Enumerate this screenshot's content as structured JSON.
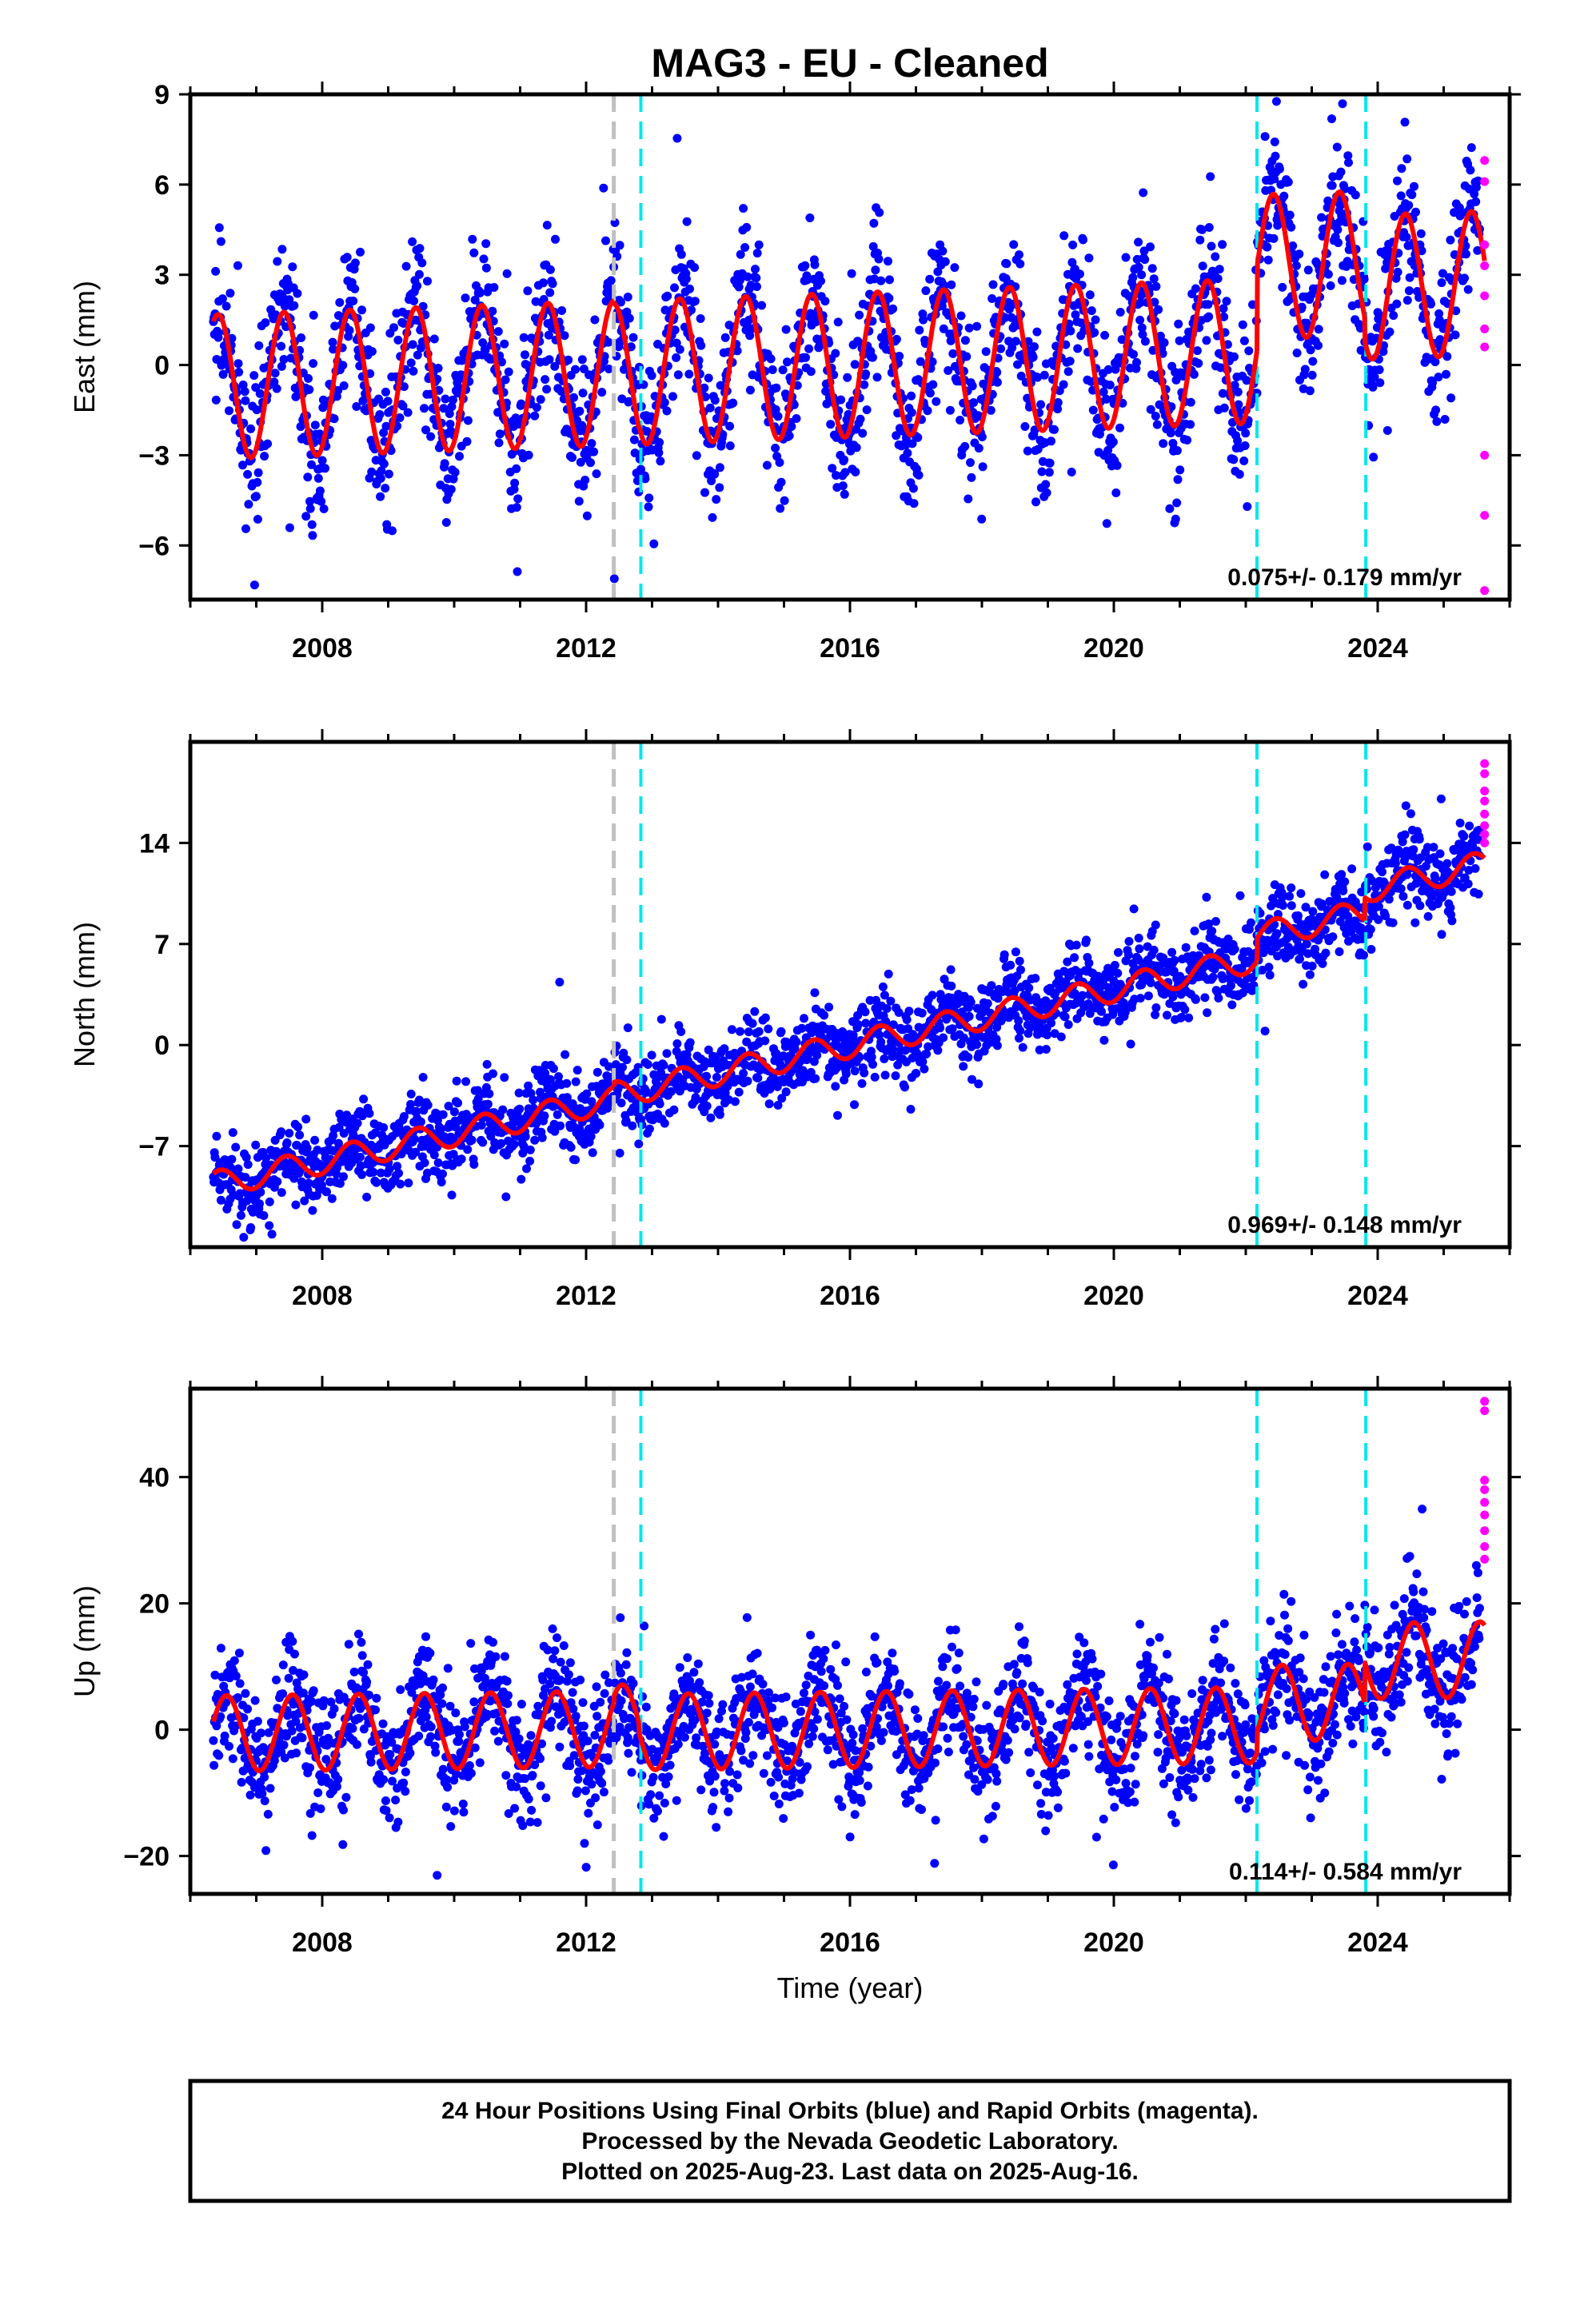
{
  "title": "MAG3  - EU - Cleaned",
  "colors": {
    "final": "#0000ff",
    "rapid": "#ff00ff",
    "model": "#ff0000",
    "equipment_change": "#c0c0c0",
    "event": "#00e5ee"
  },
  "footer": {
    "line1": "24 Hour Positions Using Final Orbits (blue) and Rapid Orbits (magenta).",
    "line2": "Processed by the Nevada Geodetic Laboratory.",
    "line3": "Plotted on 2025-Aug-23. Last data on 2025-Aug-16."
  },
  "chart_data": [
    {
      "type": "scatter",
      "component": "east",
      "ylabel": "East (mm)",
      "xlabel": "",
      "xlim": [
        2006.0,
        2026.0
      ],
      "ylim": [
        -7.8,
        9
      ],
      "yticks": [
        -6,
        -3,
        0,
        3,
        6,
        9
      ],
      "yticks_labels": [
        "−6",
        "−3",
        "0",
        "3",
        "6",
        "9"
      ],
      "xticks": [
        2008,
        2012,
        2016,
        2020,
        2024
      ],
      "xticks_labels": [
        "2008",
        "2012",
        "2016",
        "2020",
        "2024"
      ],
      "rate_label": "0.075+/- 0.179 mm/yr",
      "data_start": 2006.35,
      "data_end": 2025.62,
      "rapid_start": 2025.55,
      "noise_sd": 1.25,
      "seasonal_amplitude": 2.4,
      "seasonal_peak_phase": 0.42,
      "model": {
        "segments": [
          {
            "start": 2006.35,
            "end": 2012.42,
            "offset": 0.0,
            "slope": 0.075
          },
          {
            "start": 2012.42,
            "end": 2012.8,
            "offset": -0.1,
            "slope": 0.075
          },
          {
            "start": 2012.8,
            "end": 2022.17,
            "offset": 0.0,
            "slope": 0.075
          },
          {
            "start": 2022.17,
            "end": 2023.8,
            "offset": 2.8,
            "slope": 0.075
          },
          {
            "start": 2023.8,
            "end": 2025.62,
            "offset": 2.0,
            "slope": 0.075
          }
        ]
      },
      "dashed_lines": [
        {
          "x": 2012.42,
          "kind": "equipment_change"
        },
        {
          "x": 2012.83,
          "kind": "event"
        },
        {
          "x": 2022.17,
          "kind": "event"
        },
        {
          "x": 2023.82,
          "kind": "event"
        }
      ],
      "rapid_points": [
        {
          "x": 2025.62,
          "y": 6.8
        },
        {
          "x": 2025.62,
          "y": 6.1
        },
        {
          "x": 2025.62,
          "y": 4.0
        },
        {
          "x": 2025.62,
          "y": 3.3
        },
        {
          "x": 2025.62,
          "y": 2.3
        },
        {
          "x": 2025.62,
          "y": 1.2
        },
        {
          "x": 2025.62,
          "y": 0.6
        },
        {
          "x": 2025.62,
          "y": -3.0
        },
        {
          "x": 2025.62,
          "y": -5.0
        },
        {
          "x": 2025.62,
          "y": -7.5
        }
      ]
    },
    {
      "type": "scatter",
      "component": "north",
      "ylabel": "North (mm)",
      "xlabel": "",
      "xlim": [
        2006.0,
        2026.0
      ],
      "ylim": [
        -14,
        21
      ],
      "yticks": [
        -7,
        0,
        7,
        14
      ],
      "yticks_labels": [
        "−7",
        "0",
        "7",
        "14"
      ],
      "xticks": [
        2008,
        2012,
        2016,
        2020,
        2024
      ],
      "xticks_labels": [
        "2008",
        "2012",
        "2016",
        "2020",
        "2024"
      ],
      "rate_label": "0.969+/- 0.148 mm/yr",
      "data_start": 2006.35,
      "data_end": 2025.62,
      "rapid_start": 2025.55,
      "noise_sd": 1.4,
      "seasonal_amplitude": 0.9,
      "seasonal_peak_phase": 0.45,
      "model": {
        "segments": [
          {
            "start": 2006.35,
            "end": 2012.42,
            "offset": -0.3,
            "slope": 0.969
          },
          {
            "start": 2012.42,
            "end": 2012.8,
            "offset": 0.0,
            "slope": 0.969
          },
          {
            "start": 2012.8,
            "end": 2022.17,
            "offset": 0.0,
            "slope": 0.969
          },
          {
            "start": 2022.17,
            "end": 2023.8,
            "offset": 1.6,
            "slope": 0.969
          },
          {
            "start": 2023.8,
            "end": 2025.62,
            "offset": 3.2,
            "slope": 0.969
          }
        ]
      },
      "dashed_lines": [
        {
          "x": 2012.42,
          "kind": "equipment_change"
        },
        {
          "x": 2012.83,
          "kind": "event"
        },
        {
          "x": 2022.17,
          "kind": "event"
        },
        {
          "x": 2023.82,
          "kind": "event"
        }
      ],
      "rapid_points": [
        {
          "x": 2025.62,
          "y": 19.5
        },
        {
          "x": 2025.62,
          "y": 18.8
        },
        {
          "x": 2025.62,
          "y": 17.6
        },
        {
          "x": 2025.62,
          "y": 16.9
        },
        {
          "x": 2025.62,
          "y": 16.0
        },
        {
          "x": 2025.62,
          "y": 15.2
        },
        {
          "x": 2025.62,
          "y": 14.6
        },
        {
          "x": 2025.62,
          "y": 14.0
        }
      ]
    },
    {
      "type": "scatter",
      "component": "up",
      "ylabel": "Up (mm)",
      "xlabel": "Time (year)",
      "xlim": [
        2006.0,
        2026.0
      ],
      "ylim": [
        -26,
        54
      ],
      "yticks": [
        -20,
        0,
        20,
        40
      ],
      "yticks_labels": [
        "−20",
        "0",
        "20",
        "40"
      ],
      "xticks": [
        2008,
        2012,
        2016,
        2020,
        2024
      ],
      "xticks_labels": [
        "2008",
        "2012",
        "2016",
        "2020",
        "2024"
      ],
      "rate_label": "0.114+/- 0.584 mm/yr",
      "data_start": 2006.35,
      "data_end": 2025.62,
      "rapid_start": 2025.55,
      "noise_sd": 4.8,
      "seasonal_amplitude": 6.0,
      "seasonal_peak_phase": 0.55,
      "model": {
        "segments": [
          {
            "start": 2006.35,
            "end": 2012.42,
            "offset": 0.5,
            "slope": 0.114
          },
          {
            "start": 2012.42,
            "end": 2012.8,
            "offset": 1.5,
            "slope": 0.114
          },
          {
            "start": 2012.8,
            "end": 2022.17,
            "offset": 0.0,
            "slope": 0.114
          },
          {
            "start": 2022.17,
            "end": 2023.8,
            "offset": 3.5,
            "slope": 0.114
          },
          {
            "start": 2023.8,
            "end": 2025.62,
            "offset": 10.0,
            "slope": 0.114
          }
        ]
      },
      "dashed_lines": [
        {
          "x": 2012.42,
          "kind": "equipment_change"
        },
        {
          "x": 2012.83,
          "kind": "event"
        },
        {
          "x": 2022.17,
          "kind": "event"
        },
        {
          "x": 2023.82,
          "kind": "event"
        }
      ],
      "rapid_points": [
        {
          "x": 2025.62,
          "y": 52.0
        },
        {
          "x": 2025.62,
          "y": 50.5
        },
        {
          "x": 2025.62,
          "y": 39.5
        },
        {
          "x": 2025.62,
          "y": 38.0
        },
        {
          "x": 2025.62,
          "y": 36.0
        },
        {
          "x": 2025.62,
          "y": 34.0
        },
        {
          "x": 2025.62,
          "y": 31.5
        },
        {
          "x": 2025.62,
          "y": 29.0
        },
        {
          "x": 2025.62,
          "y": 27.0
        }
      ]
    }
  ]
}
